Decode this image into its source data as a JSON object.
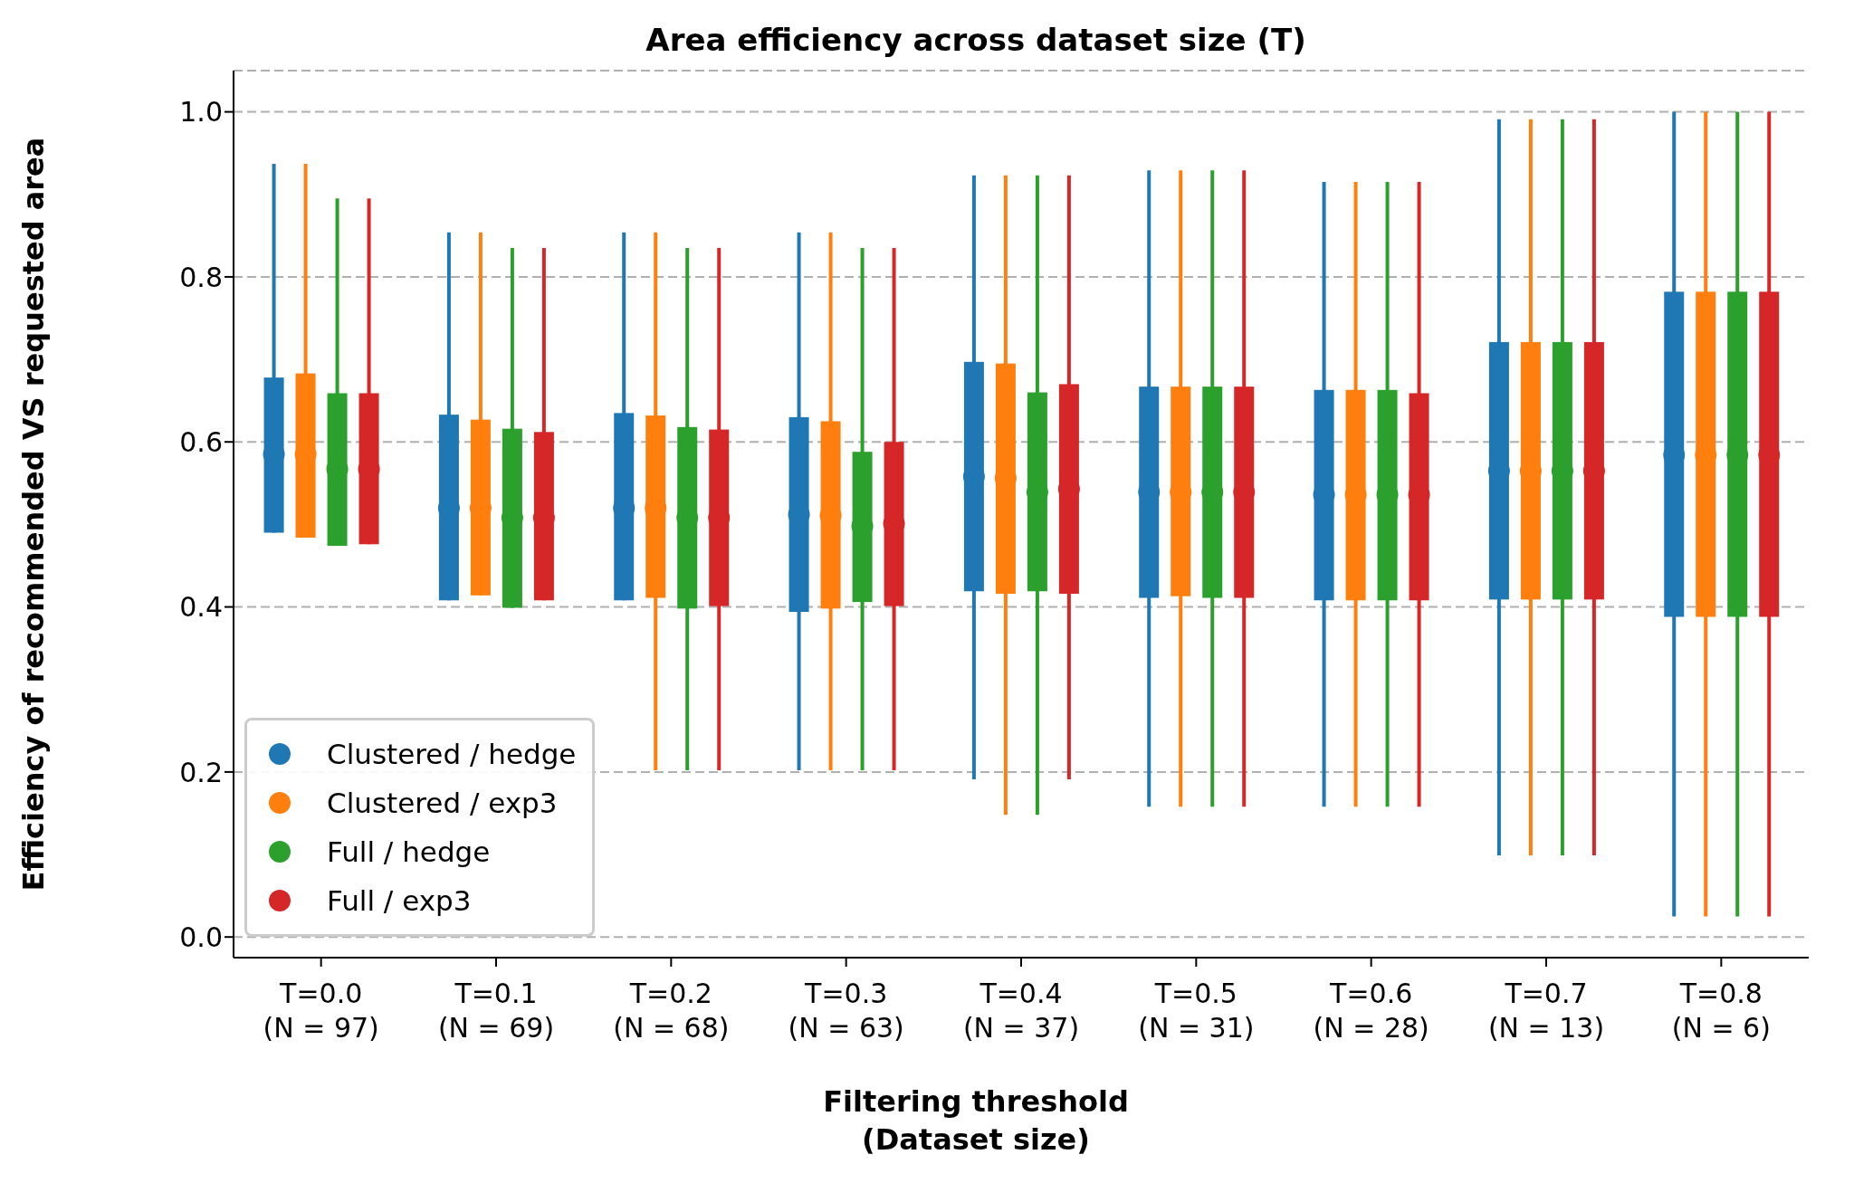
{
  "chart_data": {
    "type": "box",
    "title": "Area efficiency across dataset size (T)",
    "xlabel": "Filtering threshold\n(Dataset size)",
    "ylabel": "Efficiency of recommended VS requested area",
    "categories": [
      "T=0.0\n(N = 97)",
      "T=0.1\n(N = 69)",
      "T=0.2\n(N = 68)",
      "T=0.3\n(N = 63)",
      "T=0.4\n(N = 37)",
      "T=0.5\n(N = 31)",
      "T=0.6\n(N = 28)",
      "T=0.7\n(N = 13)",
      "T=0.8\n(N = 6)"
    ],
    "ylim": [
      -0.025,
      1.05
    ],
    "yticks": [
      {
        "value": 0,
        "label": "0.0"
      },
      0.2,
      0.4,
      0.6,
      0.8,
      {
        "value": 1,
        "label": "1.0"
      }
    ],
    "grid": "y",
    "legend": "bottom left",
    "marker": "circle",
    "series": [
      {
        "name": "Clustered / hedge",
        "color": "#1f77b4",
        "boxes": [
          {
            "low": null,
            "q1": 0.49,
            "median": 0.585,
            "q3": 0.678,
            "high": 0.937
          },
          {
            "low": null,
            "q1": 0.408,
            "median": 0.52,
            "q3": 0.633,
            "high": 0.854
          },
          {
            "low": null,
            "q1": 0.408,
            "median": 0.52,
            "q3": 0.635,
            "high": 0.854
          },
          {
            "low": 0.202,
            "q1": 0.394,
            "median": 0.512,
            "q3": 0.63,
            "high": 0.854
          },
          {
            "low": 0.191,
            "q1": 0.419,
            "median": 0.558,
            "q3": 0.697,
            "high": 0.923
          },
          {
            "low": 0.158,
            "q1": 0.411,
            "median": 0.539,
            "q3": 0.667,
            "high": 0.929
          },
          {
            "low": 0.158,
            "q1": 0.408,
            "median": 0.536,
            "q3": 0.663,
            "high": 0.915
          },
          {
            "low": 0.099,
            "q1": 0.409,
            "median": 0.565,
            "q3": 0.721,
            "high": 0.991
          },
          {
            "low": 0.025,
            "q1": 0.388,
            "median": 0.584,
            "q3": 0.782,
            "high": 1.0
          }
        ]
      },
      {
        "name": "Clustered / exp3",
        "color": "#ff7f0e",
        "boxes": [
          {
            "low": null,
            "q1": 0.484,
            "median": 0.585,
            "q3": 0.683,
            "high": 0.937
          },
          {
            "low": null,
            "q1": 0.414,
            "median": 0.52,
            "q3": 0.627,
            "high": 0.854
          },
          {
            "low": 0.202,
            "q1": 0.411,
            "median": 0.52,
            "q3": 0.632,
            "high": 0.854
          },
          {
            "low": 0.202,
            "q1": 0.398,
            "median": 0.511,
            "q3": 0.625,
            "high": 0.854
          },
          {
            "low": 0.148,
            "q1": 0.416,
            "median": 0.556,
            "q3": 0.695,
            "high": 0.923
          },
          {
            "low": 0.158,
            "q1": 0.413,
            "median": 0.539,
            "q3": 0.667,
            "high": 0.929
          },
          {
            "low": 0.158,
            "q1": 0.408,
            "median": 0.536,
            "q3": 0.663,
            "high": 0.915
          },
          {
            "low": 0.099,
            "q1": 0.409,
            "median": 0.565,
            "q3": 0.721,
            "high": 0.991
          },
          {
            "low": 0.025,
            "q1": 0.388,
            "median": 0.584,
            "q3": 0.782,
            "high": 1.0
          }
        ]
      },
      {
        "name": "Full / hedge",
        "color": "#2ca02c",
        "boxes": [
          {
            "low": null,
            "q1": 0.474,
            "median": 0.567,
            "q3": 0.659,
            "high": 0.895
          },
          {
            "low": null,
            "q1": 0.399,
            "median": 0.508,
            "q3": 0.616,
            "high": 0.835
          },
          {
            "low": 0.202,
            "q1": 0.398,
            "median": 0.508,
            "q3": 0.618,
            "high": 0.835
          },
          {
            "low": 0.202,
            "q1": 0.406,
            "median": 0.498,
            "q3": 0.588,
            "high": 0.835
          },
          {
            "low": 0.148,
            "q1": 0.419,
            "median": 0.539,
            "q3": 0.66,
            "high": 0.923
          },
          {
            "low": 0.158,
            "q1": 0.411,
            "median": 0.539,
            "q3": 0.667,
            "high": 0.929
          },
          {
            "low": 0.158,
            "q1": 0.408,
            "median": 0.536,
            "q3": 0.663,
            "high": 0.915
          },
          {
            "low": 0.099,
            "q1": 0.409,
            "median": 0.565,
            "q3": 0.721,
            "high": 0.991
          },
          {
            "low": 0.025,
            "q1": 0.388,
            "median": 0.584,
            "q3": 0.782,
            "high": 1.0
          }
        ]
      },
      {
        "name": "Full / exp3",
        "color": "#d62728",
        "boxes": [
          {
            "low": null,
            "q1": 0.476,
            "median": 0.567,
            "q3": 0.659,
            "high": 0.895
          },
          {
            "low": null,
            "q1": 0.408,
            "median": 0.508,
            "q3": 0.612,
            "high": 0.835
          },
          {
            "low": 0.202,
            "q1": 0.401,
            "median": 0.508,
            "q3": 0.615,
            "high": 0.835
          },
          {
            "low": 0.202,
            "q1": 0.401,
            "median": 0.501,
            "q3": 0.6,
            "high": 0.835
          },
          {
            "low": 0.191,
            "q1": 0.416,
            "median": 0.543,
            "q3": 0.67,
            "high": 0.923
          },
          {
            "low": 0.158,
            "q1": 0.411,
            "median": 0.539,
            "q3": 0.667,
            "high": 0.929
          },
          {
            "low": 0.158,
            "q1": 0.408,
            "median": 0.536,
            "q3": 0.659,
            "high": 0.915
          },
          {
            "low": 0.099,
            "q1": 0.409,
            "median": 0.565,
            "q3": 0.721,
            "high": 0.991
          },
          {
            "low": 0.025,
            "q1": 0.388,
            "median": 0.584,
            "q3": 0.782,
            "high": 1.0
          }
        ]
      }
    ]
  }
}
